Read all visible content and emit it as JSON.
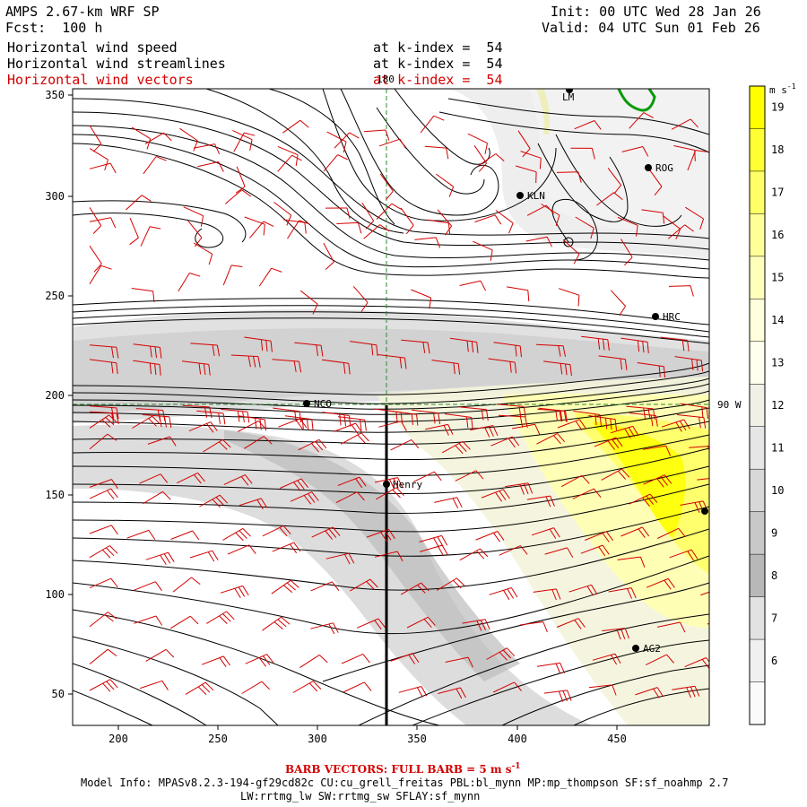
{
  "header": {
    "title": "AMPS 2.67-km WRF SP",
    "forecast": "Fcst:  100 h",
    "init": "Init: 00 UTC Wed 28 Jan 26",
    "valid": "Valid: 04 UTC Sun 01 Feb 26",
    "fields": [
      {
        "label": "Horizontal wind speed",
        "level": "at k-index =  54",
        "color": "#000000"
      },
      {
        "label": "Horizontal wind streamlines",
        "level": "at k-index =  54",
        "color": "#000000"
      },
      {
        "label": "Horizontal wind vectors",
        "level": "at k-index =  54",
        "color": "#d40000"
      }
    ]
  },
  "map": {
    "x_ticks": [
      "200",
      "250",
      "300",
      "350",
      "400",
      "450"
    ],
    "y_ticks": [
      "350",
      "300",
      "250",
      "200",
      "150",
      "100",
      "50"
    ],
    "meridian_label": "180",
    "parallel_label": "90 W",
    "stations": [
      {
        "name": "LM"
      },
      {
        "name": "ROG"
      },
      {
        "name": "KLN"
      },
      {
        "name": "HRC"
      },
      {
        "name": "NCO"
      },
      {
        "name": "Henry"
      },
      {
        "name": "AG2"
      },
      {
        "name": ""
      }
    ]
  },
  "colorbar": {
    "unit": "m s",
    "unit_exp": "-1",
    "labels": [
      "19",
      "18",
      "17",
      "16",
      "15",
      "14",
      "13",
      "12",
      "11",
      "10",
      "9",
      "8",
      "7",
      "6"
    ],
    "colors": [
      "#ffff00",
      "#ffff33",
      "#ffff66",
      "#ffff99",
      "#ffffbb",
      "#ffffdd",
      "#ffffee",
      "#f0f0e6",
      "#e6e6e6",
      "#d8d8d8",
      "#c8c8c8",
      "#b8b8b8",
      "#e2e2e2",
      "#f0f0f0",
      "#fafafa"
    ]
  },
  "footer": {
    "barb_note": "BARB VECTORS:  FULL BARB = 5 m s",
    "barb_exp": "-1",
    "model_info": "Model Info: MPASv8.2.3-194-gf29cd82c CU:cu_grell_freitas PBL:bl_mynn MP:mp_thompson SF:sf_noahmp 2.7",
    "model_info2": "LW:rrtmg_lw SW:rrtmg_sw SFLAY:sf_mynn"
  }
}
